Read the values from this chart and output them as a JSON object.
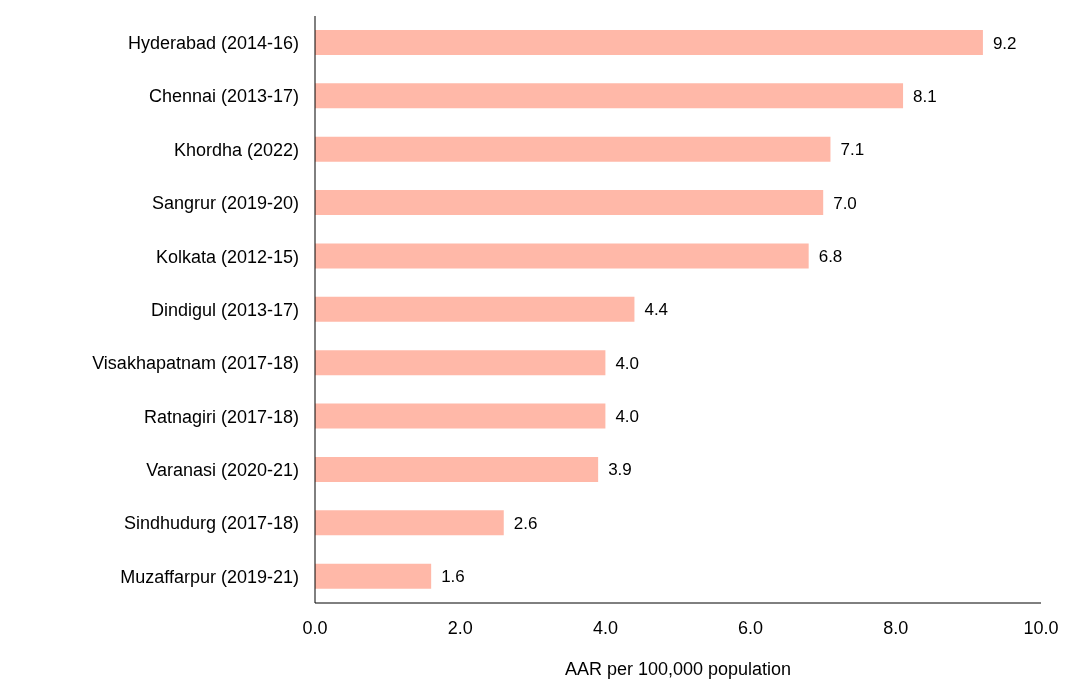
{
  "chart_data": {
    "type": "bar",
    "orientation": "horizontal",
    "xlabel": "AAR per 100,000 population",
    "categories": [
      "Hyderabad (2014-16)",
      "Chennai (2013-17)",
      "Khordha (2022)",
      "Sangrur (2019-20)",
      "Kolkata (2012-15)",
      "Dindigul (2013-17)",
      "Visakhapatnam (2017-18)",
      "Ratnagiri (2017-18)",
      "Varanasi (2020-21)",
      "Sindhudurg (2017-18)",
      "Muzaffarpur (2019-21)"
    ],
    "values": [
      9.2,
      8.1,
      7.1,
      7.0,
      6.8,
      4.4,
      4.0,
      4.0,
      3.9,
      2.6,
      1.6
    ],
    "value_labels": [
      "9.2",
      "8.1",
      "7.1",
      "7.0",
      "6.8",
      "4.4",
      "4.0",
      "4.0",
      "3.9",
      "2.6",
      "1.6"
    ],
    "color": "#ffb8a8",
    "xlim": [
      0,
      10
    ],
    "xticks": [
      {
        "value": 0,
        "label": "0.0"
      },
      {
        "value": 2,
        "label": "2.0"
      },
      {
        "value": 4,
        "label": "4.0"
      },
      {
        "value": 6,
        "label": "6.0"
      },
      {
        "value": 8,
        "label": "8.0"
      },
      {
        "value": 10,
        "label": "10.0"
      }
    ],
    "grid": false,
    "legend": false
  }
}
